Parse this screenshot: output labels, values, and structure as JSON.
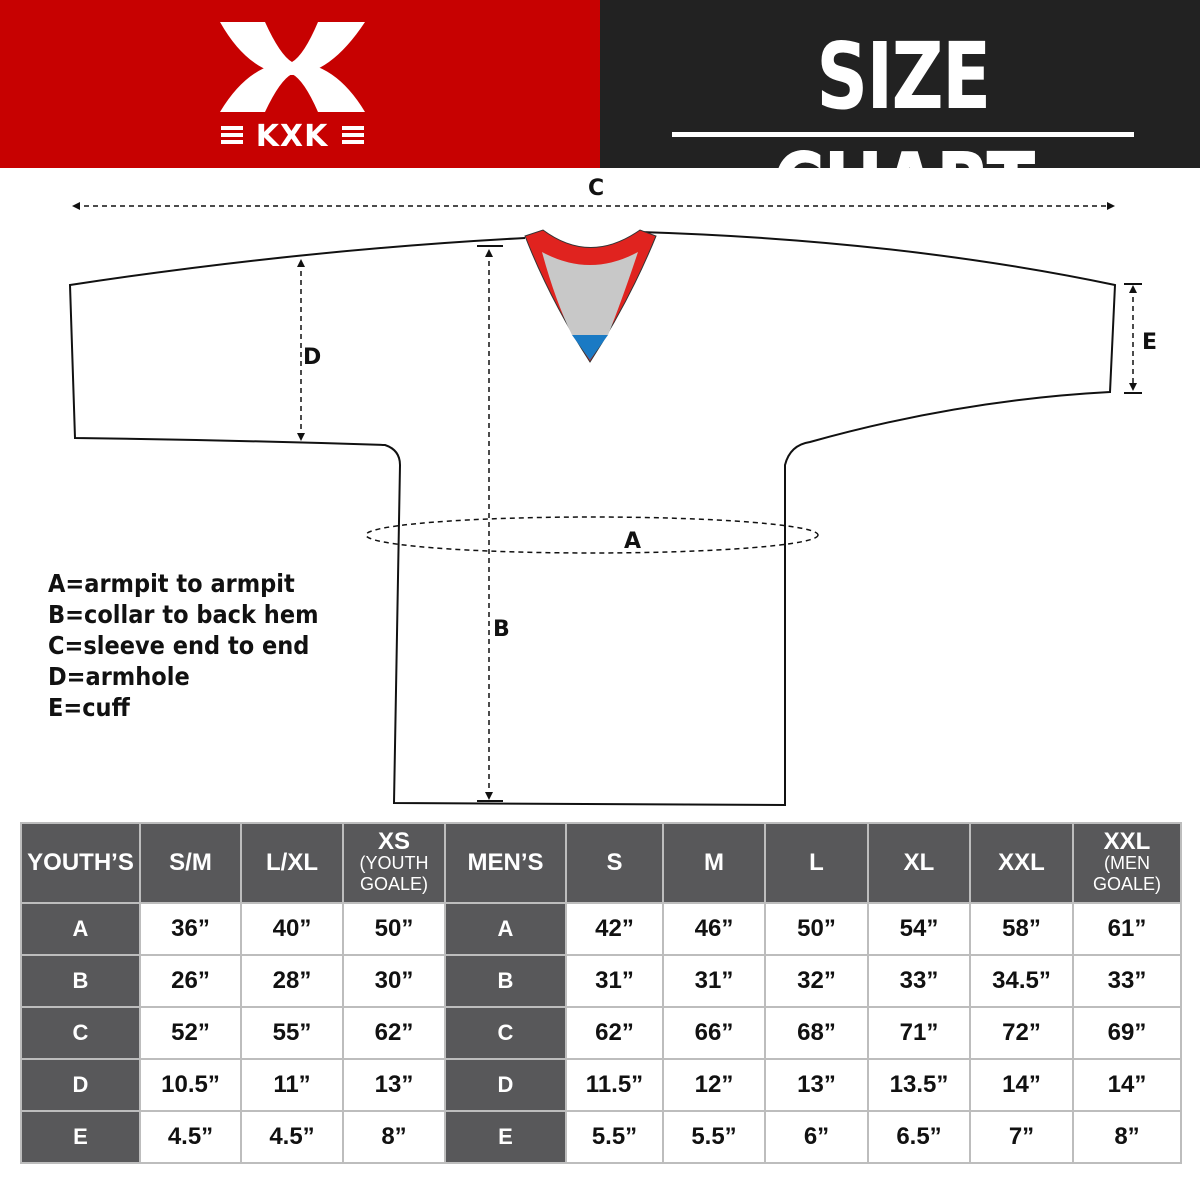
{
  "brand": {
    "name": "KXK",
    "color": "#c70101"
  },
  "header": {
    "title": "SIZE CHART"
  },
  "diagram": {
    "labels": {
      "a": "A",
      "b": "B",
      "c": "C",
      "d": "D",
      "e": "E"
    }
  },
  "legend": [
    "A=armpit to armpit",
    "B=collar to back hem",
    "C=sleeve end to end",
    "D=armhole",
    "E=cuff"
  ],
  "table": {
    "youth_header": "YOUTH’S",
    "youth_sizes": [
      {
        "main": "S/M"
      },
      {
        "main": "L/XL"
      },
      {
        "main": "XS",
        "sub1": "(YOUTH",
        "sub2": "GOALE)"
      }
    ],
    "men_header": "MEN’S",
    "men_sizes": [
      {
        "main": "S"
      },
      {
        "main": "M"
      },
      {
        "main": "L"
      },
      {
        "main": "XL"
      },
      {
        "main": "XXL"
      },
      {
        "main": "XXL",
        "sub1": "(MEN",
        "sub2": "GOALE)"
      }
    ],
    "rows": [
      {
        "label": "A",
        "youth": [
          "36”",
          "40”",
          "50”"
        ],
        "men": [
          "42”",
          "46”",
          "50”",
          "54”",
          "58”",
          "61”"
        ]
      },
      {
        "label": "B",
        "youth": [
          "26”",
          "28”",
          "30”"
        ],
        "men": [
          "31”",
          "31”",
          "32”",
          "33”",
          "34.5”",
          "33”"
        ]
      },
      {
        "label": "C",
        "youth": [
          "52”",
          "55”",
          "62”"
        ],
        "men": [
          "62”",
          "66”",
          "68”",
          "71”",
          "72”",
          "69”"
        ]
      },
      {
        "label": "D",
        "youth": [
          "10.5”",
          "11”",
          "13”"
        ],
        "men": [
          "11.5”",
          "12”",
          "13”",
          "13.5”",
          "14”",
          "14”"
        ]
      },
      {
        "label": "E",
        "youth": [
          "4.5”",
          "4.5”",
          "8”"
        ],
        "men": [
          "5.5”",
          "5.5”",
          "6”",
          "6.5”",
          "7”",
          "8”"
        ]
      }
    ]
  }
}
